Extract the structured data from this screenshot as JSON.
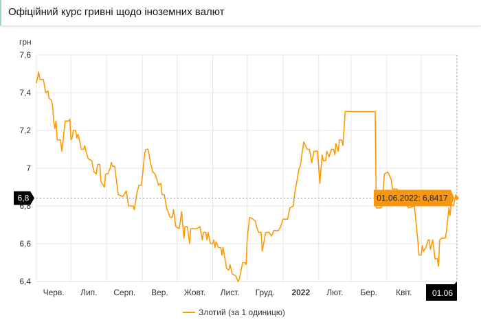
{
  "header": {
    "title": "Офіційний курс гривні щодо іноземних валют"
  },
  "chart_data": {
    "type": "line",
    "title": "",
    "ylabel": "грн",
    "xlabel": "",
    "ylim": [
      6.4,
      7.6
    ],
    "xlim": [
      "2021-06-01",
      "2022-06-01"
    ],
    "y_ticks": [
      7.6,
      7.4,
      7.2,
      7,
      6.8,
      6.6,
      6.4
    ],
    "y_tick_labels": [
      "7,6",
      "7,4",
      "7,2",
      "7",
      "6,8",
      "6,6",
      "6,4"
    ],
    "x_tick_labels": [
      "Черв.",
      "Лип.",
      "Серп.",
      "Вер.",
      "Жовт.",
      "Лист.",
      "Груд.",
      "2022",
      "Лют.",
      "Бер.",
      "Квіт."
    ],
    "grid": true,
    "legend": "bottom",
    "color": "#ff9900",
    "series": [
      {
        "name": "Злотий (за 1 одиницю)",
        "points": [
          [
            "2021-06-01",
            7.45
          ],
          [
            "2021-06-03",
            7.51
          ],
          [
            "2021-06-04",
            7.47
          ],
          [
            "2021-06-07",
            7.47
          ],
          [
            "2021-06-09",
            7.4
          ],
          [
            "2021-06-11",
            7.41
          ],
          [
            "2021-06-12",
            7.37
          ],
          [
            "2021-06-14",
            7.36
          ],
          [
            "2021-06-15",
            7.33
          ],
          [
            "2021-06-16",
            7.25
          ],
          [
            "2021-06-17",
            7.21
          ],
          [
            "2021-06-18",
            7.25
          ],
          [
            "2021-06-19",
            7.15
          ],
          [
            "2021-06-22",
            7.15
          ],
          [
            "2021-06-23",
            7.09
          ],
          [
            "2021-06-26",
            7.25
          ],
          [
            "2021-06-29",
            7.25
          ],
          [
            "2021-06-30",
            7.26
          ],
          [
            "2021-07-01",
            7.15
          ],
          [
            "2021-07-02",
            7.16
          ],
          [
            "2021-07-03",
            7.2
          ],
          [
            "2021-07-05",
            7.2
          ],
          [
            "2021-07-06",
            7.16
          ],
          [
            "2021-07-07",
            7.18
          ],
          [
            "2021-07-08",
            7.16
          ],
          [
            "2021-07-10",
            7.1
          ],
          [
            "2021-07-12",
            7.1
          ],
          [
            "2021-07-13",
            7.12
          ],
          [
            "2021-07-14",
            7.09
          ],
          [
            "2021-07-16",
            7.05
          ],
          [
            "2021-07-19",
            7.04
          ],
          [
            "2021-07-21",
            6.98
          ],
          [
            "2021-07-23",
            6.97
          ],
          [
            "2021-07-24",
            7.02
          ],
          [
            "2021-07-26",
            7.02
          ],
          [
            "2021-07-27",
            6.93
          ],
          [
            "2021-07-30",
            6.9
          ],
          [
            "2021-07-31",
            6.97
          ],
          [
            "2021-08-02",
            6.97
          ],
          [
            "2021-08-04",
            7.0
          ],
          [
            "2021-08-05",
            7.03
          ],
          [
            "2021-08-06",
            7.01
          ],
          [
            "2021-08-08",
            7.01
          ],
          [
            "2021-08-11",
            6.86
          ],
          [
            "2021-08-15",
            6.85
          ],
          [
            "2021-08-18",
            6.88
          ],
          [
            "2021-08-20",
            6.8
          ],
          [
            "2021-08-24",
            6.8
          ],
          [
            "2021-08-25",
            6.78
          ],
          [
            "2021-08-27",
            6.86
          ],
          [
            "2021-08-29",
            6.91
          ],
          [
            "2021-08-31",
            6.91
          ],
          [
            "2021-09-01",
            6.96
          ],
          [
            "2021-09-03",
            7.08
          ],
          [
            "2021-09-04",
            7.1
          ],
          [
            "2021-09-06",
            7.1
          ],
          [
            "2021-09-08",
            7.03
          ],
          [
            "2021-09-10",
            6.98
          ],
          [
            "2021-09-12",
            6.97
          ],
          [
            "2021-09-15",
            6.91
          ],
          [
            "2021-09-17",
            6.92
          ],
          [
            "2021-09-18",
            6.86
          ],
          [
            "2021-09-20",
            6.86
          ],
          [
            "2021-09-22",
            6.79
          ],
          [
            "2021-09-25",
            6.74
          ],
          [
            "2021-09-27",
            6.74
          ],
          [
            "2021-09-28",
            6.78
          ],
          [
            "2021-09-30",
            6.69
          ],
          [
            "2021-10-03",
            6.68
          ],
          [
            "2021-10-05",
            6.77
          ],
          [
            "2021-10-07",
            6.63
          ],
          [
            "2021-10-08",
            6.69
          ],
          [
            "2021-10-10",
            6.69
          ],
          [
            "2021-10-12",
            6.6
          ],
          [
            "2021-10-13",
            6.68
          ],
          [
            "2021-10-18",
            6.68
          ],
          [
            "2021-10-21",
            6.69
          ],
          [
            "2021-10-23",
            6.62
          ],
          [
            "2021-10-24",
            6.66
          ],
          [
            "2021-10-26",
            6.66
          ],
          [
            "2021-10-27",
            6.62
          ],
          [
            "2021-10-28",
            6.66
          ],
          [
            "2021-10-30",
            6.6
          ],
          [
            "2021-11-01",
            6.6
          ],
          [
            "2021-11-02",
            6.62
          ],
          [
            "2021-11-03",
            6.58
          ],
          [
            "2021-11-04",
            6.61
          ],
          [
            "2021-11-06",
            6.58
          ],
          [
            "2021-11-08",
            6.58
          ],
          [
            "2021-11-09",
            6.54
          ],
          [
            "2021-11-10",
            6.58
          ],
          [
            "2021-11-13",
            6.47
          ],
          [
            "2021-11-15",
            6.46
          ],
          [
            "2021-11-16",
            6.49
          ],
          [
            "2021-11-18",
            6.44
          ],
          [
            "2021-11-21",
            6.43
          ],
          [
            "2021-11-23",
            6.4
          ],
          [
            "2021-11-24",
            6.41
          ],
          [
            "2021-11-27",
            6.5
          ],
          [
            "2021-11-29",
            6.5
          ],
          [
            "2021-11-30",
            6.49
          ],
          [
            "2021-12-01",
            6.63
          ],
          [
            "2021-12-03",
            6.74
          ],
          [
            "2021-12-06",
            6.73
          ],
          [
            "2021-12-08",
            6.72
          ],
          [
            "2021-12-09",
            6.69
          ],
          [
            "2021-12-11",
            6.66
          ],
          [
            "2021-12-13",
            6.66
          ],
          [
            "2021-12-14",
            6.56
          ],
          [
            "2021-12-17",
            6.66
          ],
          [
            "2021-12-20",
            6.66
          ],
          [
            "2021-12-22",
            6.64
          ],
          [
            "2021-12-24",
            6.67
          ],
          [
            "2021-12-28",
            6.67
          ],
          [
            "2021-12-30",
            6.69
          ],
          [
            "2022-01-01",
            6.73
          ],
          [
            "2022-01-05",
            6.73
          ],
          [
            "2022-01-07",
            6.79
          ],
          [
            "2022-01-10",
            6.8
          ],
          [
            "2022-01-11",
            6.86
          ],
          [
            "2022-01-15",
            7.0
          ],
          [
            "2022-01-16",
            7.01
          ],
          [
            "2022-01-19",
            7.14
          ],
          [
            "2022-01-22",
            7.1
          ],
          [
            "2022-01-24",
            7.1
          ],
          [
            "2022-01-26",
            7.03
          ],
          [
            "2022-01-28",
            7.09
          ],
          [
            "2022-01-31",
            7.09
          ],
          [
            "2022-02-02",
            6.92
          ],
          [
            "2022-02-04",
            7.07
          ],
          [
            "2022-02-05",
            7.04
          ],
          [
            "2022-02-07",
            7.04
          ],
          [
            "2022-02-08",
            7.09
          ],
          [
            "2022-02-10",
            7.06
          ],
          [
            "2022-02-12",
            7.1
          ],
          [
            "2022-02-14",
            7.1
          ],
          [
            "2022-02-15",
            7.07
          ],
          [
            "2022-02-16",
            7.13
          ],
          [
            "2022-02-18",
            7.09
          ],
          [
            "2022-02-19",
            7.15
          ],
          [
            "2022-02-21",
            7.15
          ],
          [
            "2022-02-22",
            7.12
          ],
          [
            "2022-02-24",
            7.3
          ],
          [
            "2022-03-22",
            7.3
          ],
          [
            "2022-03-23",
            6.79
          ],
          [
            "2022-03-27",
            6.79
          ],
          [
            "2022-03-28",
            6.8
          ],
          [
            "2022-03-30",
            6.97
          ],
          [
            "2022-04-02",
            6.98
          ],
          [
            "2022-04-05",
            6.94
          ],
          [
            "2022-04-06",
            6.89
          ],
          [
            "2022-04-10",
            6.89
          ],
          [
            "2022-04-20",
            6.79
          ],
          [
            "2022-04-25",
            6.8
          ],
          [
            "2022-04-28",
            6.62
          ],
          [
            "2022-04-29",
            6.54
          ],
          [
            "2022-05-01",
            6.54
          ],
          [
            "2022-05-02",
            6.59
          ],
          [
            "2022-05-03",
            6.56
          ],
          [
            "2022-05-05",
            6.58
          ],
          [
            "2022-05-07",
            6.62
          ],
          [
            "2022-05-08",
            6.62
          ],
          [
            "2022-05-09",
            6.57
          ],
          [
            "2022-05-11",
            6.62
          ],
          [
            "2022-05-12",
            6.57
          ],
          [
            "2022-05-13",
            6.52
          ],
          [
            "2022-05-15",
            6.52
          ],
          [
            "2022-05-16",
            6.48
          ],
          [
            "2022-05-17",
            6.62
          ],
          [
            "2022-05-19",
            6.63
          ],
          [
            "2022-05-22",
            6.63
          ],
          [
            "2022-05-23",
            6.67
          ],
          [
            "2022-05-25",
            6.79
          ],
          [
            "2022-05-26",
            6.75
          ],
          [
            "2022-05-27",
            6.81
          ],
          [
            "2022-05-29",
            6.8
          ],
          [
            "2022-05-31",
            6.86
          ],
          [
            "2022-06-01",
            6.8417
          ]
        ]
      }
    ],
    "tooltip": {
      "text": "01.06.2022: 6,8417",
      "date": "2022-06-01",
      "value": 6.8417
    },
    "crosshair": {
      "y_label": "6,8",
      "x_label": "01.06"
    }
  }
}
